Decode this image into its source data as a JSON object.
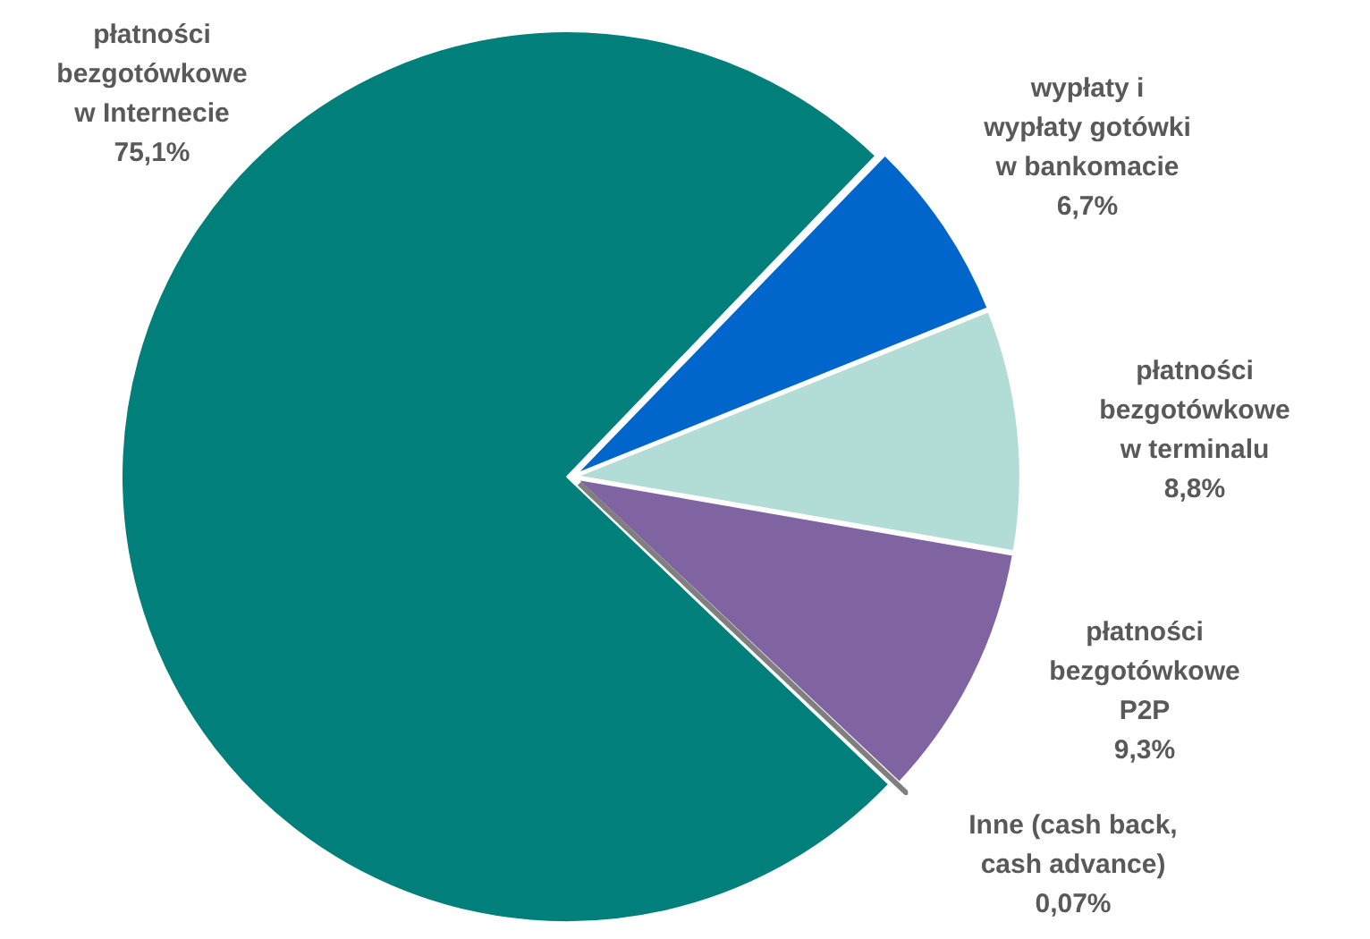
{
  "chart_data": {
    "type": "pie",
    "categories": [
      "wypłaty i\nwypłaty gotówki\nw bankomacie",
      "płatności\nbezgotówkowe\nw terminalu",
      "płatności\nbezgotówkowe\nP2P",
      "Inne (cash back,\ncash advance)",
      "płatności\nbezgotówkowe\nw Internecie"
    ],
    "values": [
      6.7,
      8.8,
      9.3,
      0.07,
      75.1
    ],
    "colors": [
      "#0066cc",
      "#b2dcd6",
      "#8064a2",
      "#7f7f7f",
      "#007f7b"
    ],
    "value_labels": [
      "6,7%",
      "8,8%",
      "9,3%",
      "0,07%",
      "75,1%"
    ],
    "legend": false
  }
}
